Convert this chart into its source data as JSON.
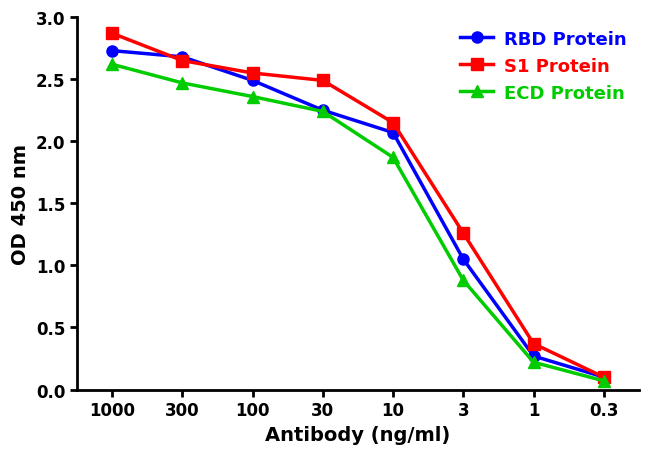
{
  "x_labels": [
    "1000",
    "300",
    "100",
    "30",
    "10",
    "3",
    "1",
    "0.3"
  ],
  "x_positions": [
    0,
    1,
    2,
    3,
    4,
    5,
    6,
    7
  ],
  "series": [
    {
      "name": "RBD Protein",
      "color": "#0000FF",
      "marker": "o",
      "markersize": 8,
      "linewidth": 2.5,
      "values": [
        2.73,
        2.68,
        2.49,
        2.25,
        2.07,
        1.05,
        0.27,
        0.1
      ]
    },
    {
      "name": "S1 Protein",
      "color": "#FF0000",
      "marker": "s",
      "markersize": 8,
      "linewidth": 2.5,
      "values": [
        2.87,
        2.65,
        2.55,
        2.49,
        2.15,
        1.26,
        0.37,
        0.1
      ]
    },
    {
      "name": "ECD Protein",
      "color": "#00CC00",
      "marker": "^",
      "markersize": 8,
      "linewidth": 2.5,
      "values": [
        2.62,
        2.47,
        2.36,
        2.24,
        1.87,
        0.88,
        0.22,
        0.07
      ]
    }
  ],
  "ylabel": "OD 450 nm",
  "xlabel": "Antibody (ng/ml)",
  "ylim": [
    0.0,
    3.0
  ],
  "yticks": [
    0.0,
    0.5,
    1.0,
    1.5,
    2.0,
    2.5,
    3.0
  ],
  "background_color": "#ffffff",
  "legend_fontsize": 13,
  "axis_label_fontsize": 14,
  "tick_fontsize": 12
}
